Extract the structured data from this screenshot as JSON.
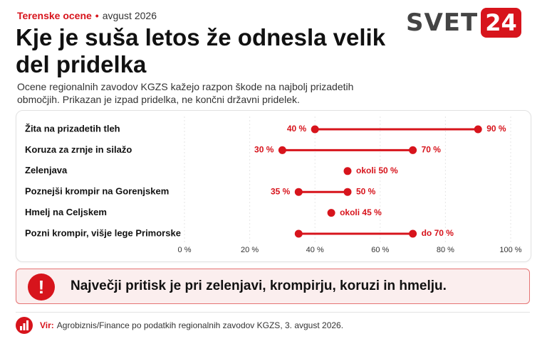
{
  "header": {
    "category": "Terenske ocene",
    "bullet": "•",
    "date": "avgust 2026",
    "title": "Kje je suša letos že odnesla velik del pridelka",
    "subtitle": "Ocene regionalnih zavodov KGZS kažejo razpon škode na najbolj prizadetih območjih. Prikazan je izpad pridelka, ne končni državni pridelek."
  },
  "logo": {
    "word": "SVET",
    "badge": "24"
  },
  "chart_data": {
    "type": "dumbbell",
    "categories": [
      "Žita na prizadetih tleh",
      "Koruza za zrnje in silažo",
      "Zelenjava",
      "Poznejši krompir na Gorenjskem",
      "Hmelj na Celjskem",
      "Pozni krompir, višje lege Primorske"
    ],
    "ranges": [
      {
        "low": 40,
        "high": 90,
        "low_label": "40 %",
        "high_label": "90 %"
      },
      {
        "low": 30,
        "high": 70,
        "low_label": "30 %",
        "high_label": "70 %"
      },
      {
        "point": 50,
        "label": "okoli 50 %"
      },
      {
        "low": 35,
        "high": 50,
        "low_label": "35 %",
        "high_label": "50 %"
      },
      {
        "point": 45,
        "label": "okoli 45 %"
      },
      {
        "low": 35,
        "high": 70,
        "high_label": "do 70 %"
      }
    ],
    "xlim": [
      0,
      100
    ],
    "x_ticks": [
      0,
      20,
      40,
      60,
      80,
      100
    ],
    "x_tick_labels": [
      "0 %",
      "20 %",
      "40 %",
      "60 %",
      "80 %",
      "100 %"
    ],
    "grid": true,
    "color": "#d7141c"
  },
  "callout": {
    "text": "Največji pritisk je pri zelenjavi, krompirju, koruzi in hmelju."
  },
  "footer": {
    "source_label": "Vir:",
    "source_text": "Agrobiznis/Finance po podatkih regionalnih zavodov KGZS, 3. avgust 2026."
  },
  "colors": {
    "accent": "#d7141c",
    "callout_bg": "#fbeeee",
    "logo_gray": "#444444"
  }
}
